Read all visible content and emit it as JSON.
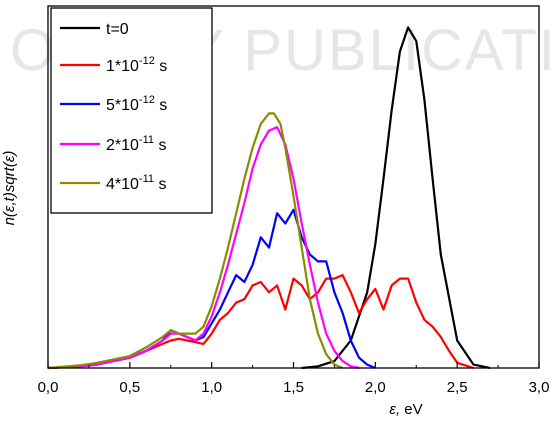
{
  "watermark": "OLOGY PUBLICATIONS",
  "chart_data": {
    "type": "line",
    "xlabel": "ε,",
    "xlabel_unit": " eV",
    "ylabel": "n(ε,t)sqrt(ε)",
    "xlim": [
      0.0,
      3.0
    ],
    "ylim": [
      0.0,
      1.0
    ],
    "x_ticks": [
      "0,0",
      "0,5",
      "1,0",
      "1,5",
      "2,0",
      "2,5",
      "3,0"
    ],
    "grid": false,
    "legend_position": "top-left",
    "series": [
      {
        "name": "t=0",
        "legend": {
          "main": "t=0",
          "sup": "",
          "tail": ""
        },
        "color": "#000000",
        "x": [
          1.55,
          1.65,
          1.75,
          1.85,
          1.95,
          2.0,
          2.05,
          2.1,
          2.15,
          2.2,
          2.25,
          2.3,
          2.35,
          2.4,
          2.5,
          2.6,
          2.7
        ],
        "y": [
          0.0,
          0.005,
          0.02,
          0.08,
          0.22,
          0.36,
          0.55,
          0.75,
          0.92,
          0.99,
          0.95,
          0.78,
          0.55,
          0.33,
          0.08,
          0.01,
          0.0
        ]
      },
      {
        "name": "1*10-12 s",
        "legend": {
          "main": "1*10",
          "sup": "-12",
          "tail": " s"
        },
        "color": "#ff0000",
        "x": [
          0.0,
          0.2,
          0.3,
          0.4,
          0.5,
          0.6,
          0.7,
          0.75,
          0.8,
          0.85,
          0.9,
          0.95,
          1.0,
          1.05,
          1.1,
          1.15,
          1.2,
          1.25,
          1.3,
          1.35,
          1.4,
          1.45,
          1.5,
          1.55,
          1.6,
          1.65,
          1.7,
          1.75,
          1.8,
          1.85,
          1.9,
          1.95,
          2.0,
          2.05,
          2.1,
          2.15,
          2.2,
          2.25,
          2.3,
          2.35,
          2.4,
          2.45,
          2.5,
          2.6
        ],
        "y": [
          0.0,
          0.005,
          0.01,
          0.02,
          0.03,
          0.05,
          0.07,
          0.08,
          0.085,
          0.08,
          0.075,
          0.07,
          0.1,
          0.14,
          0.16,
          0.19,
          0.2,
          0.24,
          0.25,
          0.22,
          0.24,
          0.17,
          0.26,
          0.24,
          0.2,
          0.22,
          0.26,
          0.26,
          0.27,
          0.22,
          0.16,
          0.2,
          0.23,
          0.17,
          0.24,
          0.26,
          0.26,
          0.19,
          0.14,
          0.12,
          0.09,
          0.05,
          0.015,
          0.0
        ]
      },
      {
        "name": "5*10-12 s",
        "legend": {
          "main": "5*10",
          "sup": "-12",
          "tail": " s"
        },
        "color": "#0000ff",
        "x": [
          0.0,
          0.2,
          0.3,
          0.4,
          0.5,
          0.6,
          0.7,
          0.75,
          0.8,
          0.85,
          0.9,
          0.95,
          1.0,
          1.05,
          1.1,
          1.15,
          1.2,
          1.25,
          1.3,
          1.35,
          1.4,
          1.45,
          1.5,
          1.55,
          1.6,
          1.65,
          1.7,
          1.75,
          1.8,
          1.85,
          1.9,
          1.95,
          2.0
        ],
        "y": [
          0.0,
          0.005,
          0.01,
          0.02,
          0.03,
          0.05,
          0.08,
          0.11,
          0.1,
          0.09,
          0.08,
          0.09,
          0.13,
          0.17,
          0.22,
          0.27,
          0.25,
          0.3,
          0.38,
          0.35,
          0.45,
          0.42,
          0.46,
          0.38,
          0.33,
          0.31,
          0.31,
          0.22,
          0.16,
          0.08,
          0.03,
          0.01,
          0.0
        ]
      },
      {
        "name": "2*10-11 s",
        "legend": {
          "main": "2*10",
          "sup": "-11",
          "tail": " s"
        },
        "color": "#ff00ff",
        "x": [
          0.0,
          0.2,
          0.3,
          0.4,
          0.5,
          0.6,
          0.7,
          0.75,
          0.8,
          0.85,
          0.9,
          0.95,
          1.0,
          1.05,
          1.1,
          1.15,
          1.2,
          1.25,
          1.3,
          1.35,
          1.4,
          1.45,
          1.5,
          1.55,
          1.6,
          1.65,
          1.7,
          1.75,
          1.8,
          1.85,
          1.9
        ],
        "y": [
          0.0,
          0.005,
          0.01,
          0.02,
          0.03,
          0.05,
          0.08,
          0.1,
          0.1,
          0.09,
          0.08,
          0.1,
          0.15,
          0.22,
          0.3,
          0.39,
          0.48,
          0.58,
          0.65,
          0.69,
          0.7,
          0.65,
          0.55,
          0.42,
          0.3,
          0.19,
          0.1,
          0.05,
          0.02,
          0.005,
          0.0
        ]
      },
      {
        "name": "4*10-11 s",
        "legend": {
          "main": "4*10",
          "sup": "-11",
          "tail": " s"
        },
        "color": "#8b8b00",
        "x": [
          0.0,
          0.2,
          0.3,
          0.4,
          0.5,
          0.6,
          0.7,
          0.75,
          0.8,
          0.85,
          0.9,
          0.95,
          1.0,
          1.05,
          1.1,
          1.15,
          1.2,
          1.25,
          1.3,
          1.35,
          1.38,
          1.42,
          1.45,
          1.5,
          1.55,
          1.6,
          1.65,
          1.7,
          1.75,
          1.8
        ],
        "y": [
          0.0,
          0.008,
          0.015,
          0.025,
          0.035,
          0.06,
          0.09,
          0.11,
          0.1,
          0.1,
          0.1,
          0.12,
          0.18,
          0.26,
          0.35,
          0.45,
          0.55,
          0.64,
          0.71,
          0.74,
          0.74,
          0.71,
          0.64,
          0.5,
          0.35,
          0.2,
          0.1,
          0.04,
          0.01,
          0.0
        ]
      }
    ]
  }
}
